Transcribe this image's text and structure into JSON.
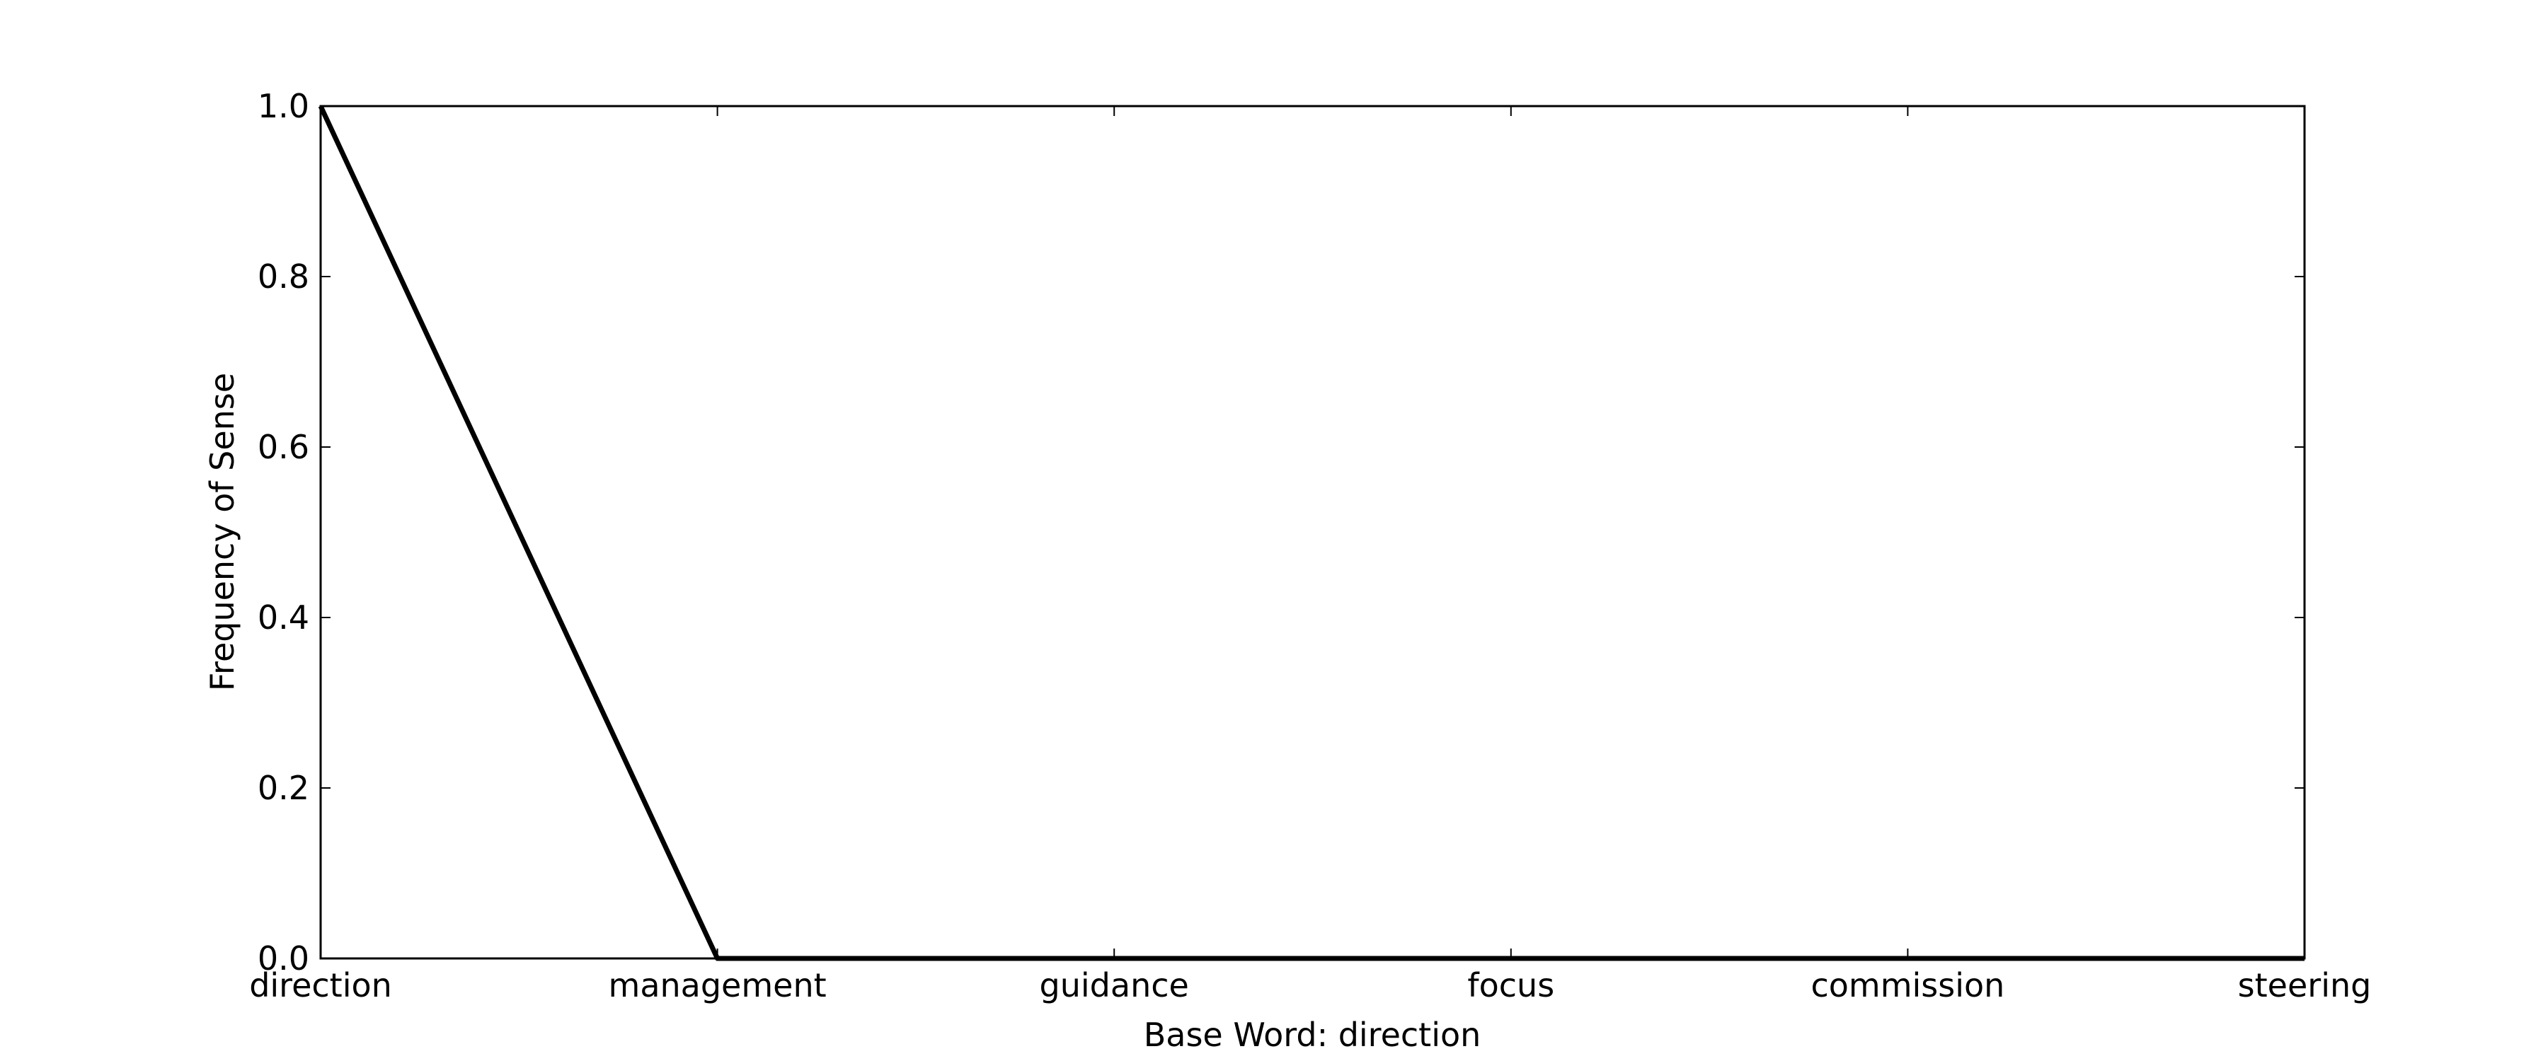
{
  "chart_data": {
    "type": "line",
    "title": "",
    "xlabel": "Base Word: direction",
    "ylabel": "Frequency of Sense",
    "categories": [
      "direction",
      "management",
      "guidance",
      "focus",
      "commission",
      "steering"
    ],
    "series": [
      {
        "values": [
          1.0,
          0.0,
          0.0,
          0.0,
          0.0,
          0.0
        ],
        "color": "#000000"
      }
    ],
    "ylim": [
      0.0,
      1.0
    ],
    "yticks": [
      "0.0",
      "0.2",
      "0.4",
      "0.6",
      "0.8",
      "1.0"
    ],
    "grid": false,
    "legend": "none"
  }
}
